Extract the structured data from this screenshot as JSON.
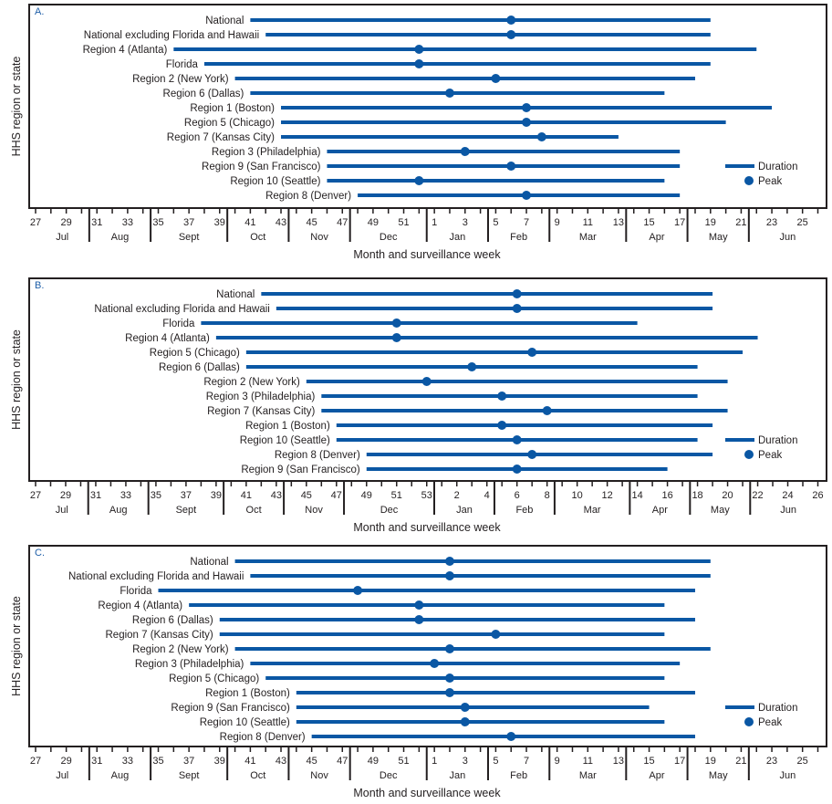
{
  "chart_data": [
    {
      "type": "dumbbell-timeline",
      "panel_label": "A.",
      "ylabel": "HHS region or state",
      "xlabel": "Month and surveillance week",
      "legend": {
        "duration": "Duration",
        "peak": "Peak",
        "placement": "bottom-right"
      },
      "color": "#0a57a4",
      "weeks": [
        27,
        28,
        29,
        30,
        31,
        32,
        33,
        34,
        35,
        36,
        37,
        38,
        39,
        40,
        41,
        42,
        43,
        44,
        45,
        46,
        47,
        48,
        49,
        50,
        51,
        52,
        1,
        2,
        3,
        4,
        5,
        6,
        7,
        8,
        9,
        10,
        11,
        12,
        13,
        14,
        15,
        16,
        17,
        18,
        19,
        20,
        21,
        22,
        23,
        24,
        25,
        26
      ],
      "tick_labels": [
        27,
        29,
        31,
        33,
        35,
        37,
        39,
        41,
        43,
        45,
        47,
        49,
        51,
        1,
        3,
        5,
        7,
        9,
        11,
        13,
        15,
        17,
        19,
        21,
        23,
        25
      ],
      "months": [
        {
          "label": "Jul",
          "first_week": 27
        },
        {
          "label": "Aug",
          "first_week": 31
        },
        {
          "label": "Sept",
          "first_week": 35
        },
        {
          "label": "Oct",
          "first_week": 40
        },
        {
          "label": "Nov",
          "first_week": 44
        },
        {
          "label": "Dec",
          "first_week": 48
        },
        {
          "label": "Jan",
          "first_week": 1
        },
        {
          "label": "Feb",
          "first_week": 5
        },
        {
          "label": "Mar",
          "first_week": 9
        },
        {
          "label": "Apr",
          "first_week": 14
        },
        {
          "label": "May",
          "first_week": 18
        },
        {
          "label": "Jun",
          "first_week": 22
        }
      ],
      "rows": [
        {
          "name": "National",
          "start": 41,
          "end": 19,
          "peak": 6
        },
        {
          "name": "National excluding Florida and Hawaii",
          "start": 42,
          "end": 19,
          "peak": 6
        },
        {
          "name": "Region 4 (Atlanta)",
          "start": 36,
          "end": 22,
          "peak": 52
        },
        {
          "name": "Florida",
          "start": 38,
          "end": 19,
          "peak": 52
        },
        {
          "name": "Region 2 (New York)",
          "start": 40,
          "end": 18,
          "peak": 5
        },
        {
          "name": "Region 6 (Dallas)",
          "start": 41,
          "end": 16,
          "peak": 2
        },
        {
          "name": "Region 1 (Boston)",
          "start": 43,
          "end": 23,
          "peak": 7
        },
        {
          "name": "Region 5 (Chicago)",
          "start": 43,
          "end": 20,
          "peak": 7
        },
        {
          "name": "Region 7 (Kansas City)",
          "start": 43,
          "end": 13,
          "peak": 8
        },
        {
          "name": "Region 3 (Philadelphia)",
          "start": 46,
          "end": 17,
          "peak": 3
        },
        {
          "name": "Region 9 (San Francisco)",
          "start": 46,
          "end": 17,
          "peak": 6
        },
        {
          "name": "Region 10 (Seattle)",
          "start": 46,
          "end": 16,
          "peak": 52
        },
        {
          "name": "Region 8 (Denver)",
          "start": 48,
          "end": 17,
          "peak": 7
        }
      ]
    },
    {
      "type": "dumbbell-timeline",
      "panel_label": "B.",
      "ylabel": "HHS region or state",
      "xlabel": "Month and surveillance week",
      "legend": {
        "duration": "Duration",
        "peak": "Peak",
        "placement": "bottom-right"
      },
      "color": "#0a57a4",
      "weeks": [
        27,
        28,
        29,
        30,
        31,
        32,
        33,
        34,
        35,
        36,
        37,
        38,
        39,
        40,
        41,
        42,
        43,
        44,
        45,
        46,
        47,
        48,
        49,
        50,
        51,
        52,
        53,
        1,
        2,
        3,
        4,
        5,
        6,
        7,
        8,
        9,
        10,
        11,
        12,
        13,
        14,
        15,
        16,
        17,
        18,
        19,
        20,
        21,
        22,
        23,
        24,
        25,
        26
      ],
      "tick_labels": [
        27,
        29,
        31,
        33,
        35,
        37,
        39,
        41,
        43,
        45,
        47,
        49,
        51,
        53,
        2,
        4,
        6,
        8,
        10,
        12,
        14,
        16,
        18,
        20,
        22,
        24,
        26
      ],
      "months": [
        {
          "label": "Jul",
          "first_week": 27
        },
        {
          "label": "Aug",
          "first_week": 31
        },
        {
          "label": "Sept",
          "first_week": 35
        },
        {
          "label": "Oct",
          "first_week": 40
        },
        {
          "label": "Nov",
          "first_week": 44
        },
        {
          "label": "Dec",
          "first_week": 48
        },
        {
          "label": "Jan",
          "first_week": 1
        },
        {
          "label": "Feb",
          "first_week": 5
        },
        {
          "label": "Mar",
          "first_week": 9
        },
        {
          "label": "Apr",
          "first_week": 14
        },
        {
          "label": "May",
          "first_week": 18
        },
        {
          "label": "Jun",
          "first_week": 22
        }
      ],
      "rows": [
        {
          "name": "National",
          "start": 42,
          "end": 19,
          "peak": 6
        },
        {
          "name": "National excluding Florida and Hawaii",
          "start": 43,
          "end": 19,
          "peak": 6
        },
        {
          "name": "Florida",
          "start": 38,
          "end": 14,
          "peak": 51
        },
        {
          "name": "Region 4 (Atlanta)",
          "start": 39,
          "end": 22,
          "peak": 51
        },
        {
          "name": "Region 5 (Chicago)",
          "start": 41,
          "end": 21,
          "peak": 7
        },
        {
          "name": "Region 6 (Dallas)",
          "start": 41,
          "end": 18,
          "peak": 3
        },
        {
          "name": "Region 2 (New York)",
          "start": 45,
          "end": 20,
          "peak": 53
        },
        {
          "name": "Region 3 (Philadelphia)",
          "start": 46,
          "end": 18,
          "peak": 5
        },
        {
          "name": "Region 7 (Kansas City)",
          "start": 46,
          "end": 20,
          "peak": 8
        },
        {
          "name": "Region 1 (Boston)",
          "start": 47,
          "end": 19,
          "peak": 5
        },
        {
          "name": "Region 10 (Seattle)",
          "start": 47,
          "end": 18,
          "peak": 6
        },
        {
          "name": "Region 8 (Denver)",
          "start": 49,
          "end": 19,
          "peak": 7
        },
        {
          "name": "Region 9 (San Francisco)",
          "start": 49,
          "end": 16,
          "peak": 6
        }
      ]
    },
    {
      "type": "dumbbell-timeline",
      "panel_label": "C.",
      "ylabel": "HHS region or state",
      "xlabel": "Month and surveillance week",
      "legend": {
        "duration": "Duration",
        "peak": "Peak",
        "placement": "bottom-right"
      },
      "color": "#0a57a4",
      "weeks": [
        27,
        28,
        29,
        30,
        31,
        32,
        33,
        34,
        35,
        36,
        37,
        38,
        39,
        40,
        41,
        42,
        43,
        44,
        45,
        46,
        47,
        48,
        49,
        50,
        51,
        52,
        1,
        2,
        3,
        4,
        5,
        6,
        7,
        8,
        9,
        10,
        11,
        12,
        13,
        14,
        15,
        16,
        17,
        18,
        19,
        20,
        21,
        22,
        23,
        24,
        25,
        26
      ],
      "tick_labels": [
        27,
        29,
        31,
        33,
        35,
        37,
        39,
        41,
        43,
        45,
        47,
        49,
        51,
        1,
        3,
        5,
        7,
        9,
        11,
        13,
        15,
        17,
        19,
        21,
        23,
        25
      ],
      "months": [
        {
          "label": "Jul",
          "first_week": 27
        },
        {
          "label": "Aug",
          "first_week": 31
        },
        {
          "label": "Sept",
          "first_week": 35
        },
        {
          "label": "Oct",
          "first_week": 40
        },
        {
          "label": "Nov",
          "first_week": 44
        },
        {
          "label": "Dec",
          "first_week": 48
        },
        {
          "label": "Jan",
          "first_week": 1
        },
        {
          "label": "Feb",
          "first_week": 5
        },
        {
          "label": "Mar",
          "first_week": 9
        },
        {
          "label": "Apr",
          "first_week": 14
        },
        {
          "label": "May",
          "first_week": 18
        },
        {
          "label": "Jun",
          "first_week": 22
        }
      ],
      "rows": [
        {
          "name": "National",
          "start": 40,
          "end": 19,
          "peak": 2
        },
        {
          "name": "National excluding Florida and Hawaii",
          "start": 41,
          "end": 19,
          "peak": 2
        },
        {
          "name": "Florida",
          "start": 35,
          "end": 18,
          "peak": 48
        },
        {
          "name": "Region 4 (Atlanta)",
          "start": 37,
          "end": 16,
          "peak": 52
        },
        {
          "name": "Region 6 (Dallas)",
          "start": 39,
          "end": 18,
          "peak": 52
        },
        {
          "name": "Region 7 (Kansas City)",
          "start": 39,
          "end": 16,
          "peak": 5
        },
        {
          "name": "Region 2 (New York)",
          "start": 40,
          "end": 19,
          "peak": 2
        },
        {
          "name": "Region 3 (Philadelphia)",
          "start": 41,
          "end": 17,
          "peak": 1
        },
        {
          "name": "Region 5 (Chicago)",
          "start": 42,
          "end": 16,
          "peak": 2
        },
        {
          "name": "Region 1 (Boston)",
          "start": 44,
          "end": 18,
          "peak": 2
        },
        {
          "name": "Region 9 (San Francisco)",
          "start": 44,
          "end": 15,
          "peak": 3
        },
        {
          "name": "Region 10 (Seattle)",
          "start": 44,
          "end": 16,
          "peak": 3
        },
        {
          "name": "Region 8 (Denver)",
          "start": 45,
          "end": 18,
          "peak": 6
        }
      ]
    }
  ]
}
